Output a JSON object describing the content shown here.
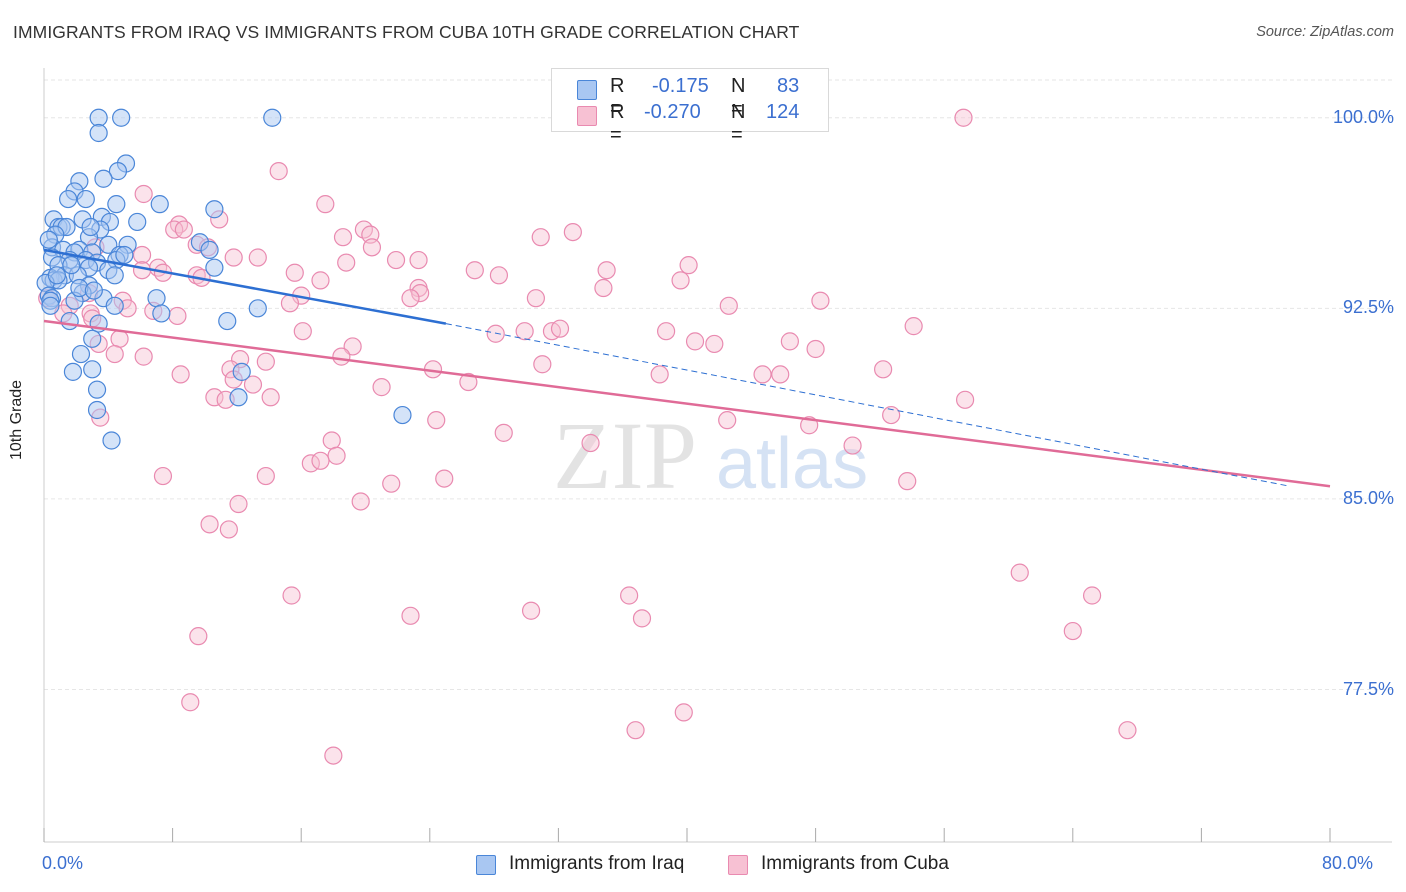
{
  "title": "IMMIGRANTS FROM IRAQ VS IMMIGRANTS FROM CUBA 10TH GRADE CORRELATION CHART",
  "source": "Source: ZipAtlas.com",
  "watermark": {
    "zip": "ZIP",
    "atlas": "atlas"
  },
  "stats": {
    "iraq": {
      "r_label": "R =",
      "r": "-0.175",
      "n_label": "N =",
      "n": "83"
    },
    "cuba": {
      "r_label": "R =",
      "r": "-0.270",
      "n_label": "N =",
      "n": "124"
    }
  },
  "legend": {
    "iraq": "Immigrants from Iraq",
    "cuba": "Immigrants from Cuba"
  },
  "colors": {
    "iraq_fill": "#a9c7f2",
    "iraq_stroke": "#4a86d8",
    "iraq_line": "#2d6fd2",
    "cuba_fill": "#f7c1d3",
    "cuba_stroke": "#e98ab0",
    "cuba_line": "#e06b97",
    "axis_text": "#3b6fd0",
    "grid": "#e6e6e6"
  },
  "chart_data": {
    "type": "scatter",
    "title": "IMMIGRANTS FROM IRAQ VS IMMIGRANTS FROM CUBA 10TH GRADE CORRELATION CHART",
    "xlabel": "",
    "ylabel": "10th Grade",
    "xlim": [
      0,
      80
    ],
    "ylim": [
      71.5,
      101.8
    ],
    "x_tick_labels": [
      "0.0%",
      "80.0%"
    ],
    "y_ticks": [
      77.5,
      85.0,
      92.5,
      100.0
    ],
    "y_tick_labels": [
      "77.5%",
      "85.0%",
      "92.5%",
      "100.0%"
    ],
    "grid": true,
    "legend_position": "bottom",
    "series": [
      {
        "name": "Immigrants from Iraq",
        "r": -0.175,
        "n": 83,
        "trend": {
          "x": [
            0,
            25
          ],
          "y": [
            94.8,
            91.9
          ],
          "dashed_extension_to": [
            77.5,
            85.5
          ]
        },
        "points": [
          [
            3.4,
            100.0
          ],
          [
            4.8,
            100.0
          ],
          [
            14.2,
            100.0
          ],
          [
            3.4,
            99.4
          ],
          [
            5.1,
            98.2
          ],
          [
            4.6,
            97.9
          ],
          [
            3.7,
            97.6
          ],
          [
            2.2,
            97.5
          ],
          [
            1.9,
            97.1
          ],
          [
            1.5,
            96.8
          ],
          [
            2.6,
            96.8
          ],
          [
            4.5,
            96.6
          ],
          [
            7.2,
            96.6
          ],
          [
            10.6,
            96.4
          ],
          [
            3.6,
            96.1
          ],
          [
            0.6,
            96.0
          ],
          [
            2.4,
            96.0
          ],
          [
            4.1,
            95.9
          ],
          [
            5.8,
            95.9
          ],
          [
            0.9,
            95.7
          ],
          [
            1.1,
            95.7
          ],
          [
            1.4,
            95.7
          ],
          [
            3.5,
            95.6
          ],
          [
            0.7,
            95.4
          ],
          [
            2.8,
            95.3
          ],
          [
            9.7,
            95.1
          ],
          [
            4.0,
            95.0
          ],
          [
            5.2,
            95.0
          ],
          [
            0.5,
            94.9
          ],
          [
            1.2,
            94.8
          ],
          [
            2.2,
            94.8
          ],
          [
            10.3,
            94.8
          ],
          [
            3.0,
            94.7
          ],
          [
            1.9,
            94.7
          ],
          [
            4.7,
            94.6
          ],
          [
            0.5,
            94.5
          ],
          [
            1.6,
            94.4
          ],
          [
            2.6,
            94.4
          ],
          [
            4.5,
            94.4
          ],
          [
            3.3,
            94.3
          ],
          [
            0.9,
            94.2
          ],
          [
            2.8,
            94.1
          ],
          [
            10.6,
            94.1
          ],
          [
            4.0,
            94.0
          ],
          [
            4.4,
            93.8
          ],
          [
            1.3,
            93.8
          ],
          [
            2.1,
            93.8
          ],
          [
            0.4,
            93.7
          ],
          [
            0.6,
            93.6
          ],
          [
            0.9,
            93.6
          ],
          [
            0.1,
            93.5
          ],
          [
            2.8,
            93.4
          ],
          [
            2.4,
            93.1
          ],
          [
            0.3,
            93.0
          ],
          [
            0.5,
            92.9
          ],
          [
            3.7,
            92.9
          ],
          [
            7.0,
            92.9
          ],
          [
            1.9,
            92.8
          ],
          [
            0.4,
            92.8
          ],
          [
            0.4,
            92.6
          ],
          [
            13.3,
            92.5
          ],
          [
            4.4,
            92.6
          ],
          [
            7.3,
            92.3
          ],
          [
            11.4,
            92.0
          ],
          [
            1.6,
            92.0
          ],
          [
            3.4,
            91.9
          ],
          [
            3.0,
            91.3
          ],
          [
            2.3,
            90.7
          ],
          [
            1.8,
            90.0
          ],
          [
            3.0,
            90.1
          ],
          [
            12.3,
            90.0
          ],
          [
            3.3,
            89.3
          ],
          [
            12.1,
            89.0
          ],
          [
            3.3,
            88.5
          ],
          [
            22.3,
            88.3
          ],
          [
            4.2,
            87.3
          ],
          [
            2.2,
            93.3
          ],
          [
            0.8,
            93.8
          ],
          [
            1.7,
            94.2
          ],
          [
            3.1,
            93.2
          ],
          [
            5.0,
            94.6
          ],
          [
            0.3,
            95.2
          ],
          [
            2.9,
            95.7
          ]
        ]
      },
      {
        "name": "Immigrants from Cuba",
        "r": -0.27,
        "n": 124,
        "trend": {
          "x": [
            0,
            80
          ],
          "y": [
            92.0,
            85.5
          ]
        },
        "points": [
          [
            57.2,
            100.0
          ],
          [
            14.6,
            97.9
          ],
          [
            6.2,
            97.0
          ],
          [
            17.5,
            96.6
          ],
          [
            10.9,
            96.0
          ],
          [
            8.4,
            95.8
          ],
          [
            8.1,
            95.6
          ],
          [
            19.9,
            95.6
          ],
          [
            20.3,
            95.4
          ],
          [
            18.6,
            95.3
          ],
          [
            30.9,
            95.3
          ],
          [
            32.9,
            95.5
          ],
          [
            9.5,
            95.0
          ],
          [
            20.4,
            94.9
          ],
          [
            6.1,
            94.6
          ],
          [
            11.8,
            94.5
          ],
          [
            10.2,
            94.9
          ],
          [
            13.3,
            94.5
          ],
          [
            21.9,
            94.4
          ],
          [
            18.8,
            94.3
          ],
          [
            23.3,
            94.4
          ],
          [
            6.1,
            94.0
          ],
          [
            7.1,
            94.1
          ],
          [
            7.4,
            93.9
          ],
          [
            9.5,
            93.8
          ],
          [
            15.6,
            93.9
          ],
          [
            17.2,
            93.6
          ],
          [
            26.8,
            94.0
          ],
          [
            28.3,
            93.8
          ],
          [
            35.0,
            94.0
          ],
          [
            40.1,
            94.2
          ],
          [
            39.6,
            93.6
          ],
          [
            34.8,
            93.3
          ],
          [
            23.3,
            93.3
          ],
          [
            23.4,
            93.1
          ],
          [
            16.0,
            93.0
          ],
          [
            22.8,
            92.9
          ],
          [
            30.6,
            92.9
          ],
          [
            48.3,
            92.8
          ],
          [
            42.6,
            92.6
          ],
          [
            1.6,
            92.6
          ],
          [
            2.9,
            92.3
          ],
          [
            1.2,
            92.3
          ],
          [
            3.0,
            92.1
          ],
          [
            4.9,
            92.8
          ],
          [
            6.8,
            92.4
          ],
          [
            8.3,
            92.2
          ],
          [
            15.3,
            92.7
          ],
          [
            16.1,
            91.6
          ],
          [
            0.2,
            92.9
          ],
          [
            28.1,
            91.5
          ],
          [
            29.9,
            91.6
          ],
          [
            31.6,
            91.6
          ],
          [
            32.1,
            91.7
          ],
          [
            38.7,
            91.6
          ],
          [
            40.5,
            91.2
          ],
          [
            41.7,
            91.1
          ],
          [
            46.4,
            91.2
          ],
          [
            48.0,
            90.9
          ],
          [
            54.1,
            91.8
          ],
          [
            19.2,
            91.0
          ],
          [
            18.5,
            90.6
          ],
          [
            4.7,
            91.3
          ],
          [
            3.4,
            91.1
          ],
          [
            4.4,
            90.7
          ],
          [
            6.2,
            90.6
          ],
          [
            12.2,
            90.5
          ],
          [
            13.8,
            90.4
          ],
          [
            31.0,
            90.3
          ],
          [
            24.2,
            90.1
          ],
          [
            11.6,
            90.1
          ],
          [
            8.5,
            89.9
          ],
          [
            21.0,
            89.4
          ],
          [
            26.4,
            89.6
          ],
          [
            11.8,
            89.7
          ],
          [
            13.0,
            89.5
          ],
          [
            38.3,
            89.9
          ],
          [
            44.7,
            89.9
          ],
          [
            45.8,
            89.9
          ],
          [
            52.2,
            90.1
          ],
          [
            10.6,
            89.0
          ],
          [
            11.3,
            88.9
          ],
          [
            3.5,
            88.2
          ],
          [
            57.3,
            88.9
          ],
          [
            24.4,
            88.1
          ],
          [
            42.5,
            88.1
          ],
          [
            52.7,
            88.3
          ],
          [
            47.6,
            87.9
          ],
          [
            28.6,
            87.6
          ],
          [
            17.9,
            87.3
          ],
          [
            34.0,
            87.2
          ],
          [
            18.2,
            86.7
          ],
          [
            16.6,
            86.4
          ],
          [
            17.2,
            86.5
          ],
          [
            50.3,
            87.1
          ],
          [
            7.4,
            85.9
          ],
          [
            13.8,
            85.9
          ],
          [
            21.6,
            85.6
          ],
          [
            24.9,
            85.8
          ],
          [
            53.7,
            85.7
          ],
          [
            12.1,
            84.8
          ],
          [
            19.7,
            84.9
          ],
          [
            10.3,
            84.0
          ],
          [
            11.5,
            83.8
          ],
          [
            60.7,
            82.1
          ],
          [
            15.4,
            81.2
          ],
          [
            36.4,
            81.2
          ],
          [
            65.2,
            81.2
          ],
          [
            22.8,
            80.4
          ],
          [
            30.3,
            80.6
          ],
          [
            37.2,
            80.3
          ],
          [
            64.0,
            79.8
          ],
          [
            9.6,
            79.6
          ],
          [
            9.1,
            77.0
          ],
          [
            36.8,
            75.9
          ],
          [
            39.8,
            76.6
          ],
          [
            67.4,
            75.9
          ],
          [
            18.0,
            74.9
          ],
          [
            8.7,
            95.6
          ],
          [
            5.2,
            92.5
          ],
          [
            2.8,
            93.1
          ],
          [
            9.8,
            93.7
          ],
          [
            3.2,
            94.9
          ],
          [
            14.1,
            89.0
          ]
        ]
      }
    ]
  }
}
